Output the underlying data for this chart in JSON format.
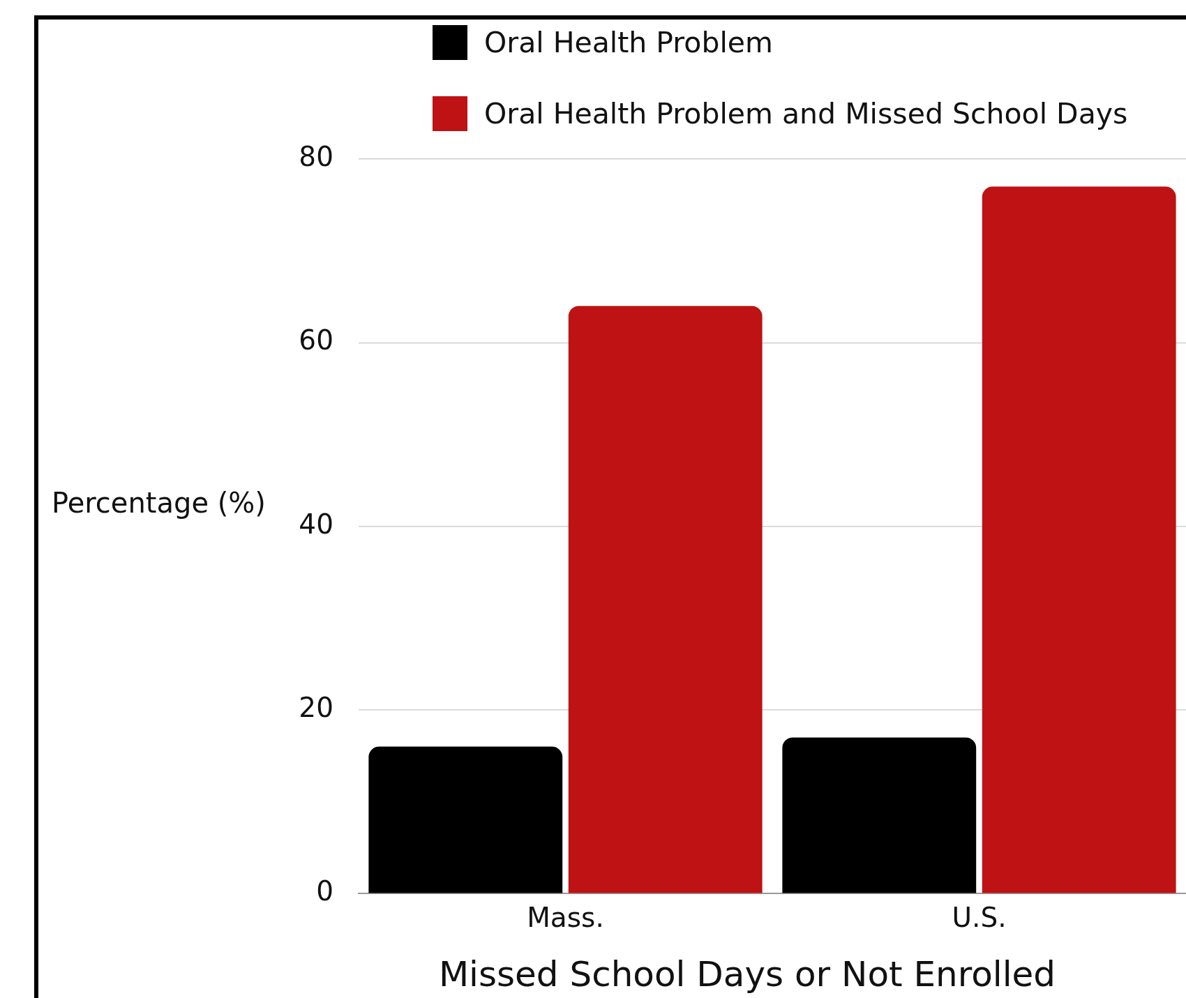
{
  "chart_data": {
    "type": "bar",
    "xlabel": "Missed School Days or Not Enrolled",
    "ylabel": "Percentage (%)",
    "categories": [
      "Mass.",
      "U.S."
    ],
    "series": [
      {
        "name": "Oral Health Problem",
        "color": "#000000",
        "values": [
          16,
          17
        ]
      },
      {
        "name": "Oral Health Problem and Missed School Days",
        "color": "#be1214",
        "values": [
          64,
          77
        ]
      }
    ],
    "ylim": [
      0,
      80
    ],
    "yticks": [
      0,
      20,
      40,
      60,
      80
    ],
    "grid": "y",
    "legend": "top"
  }
}
